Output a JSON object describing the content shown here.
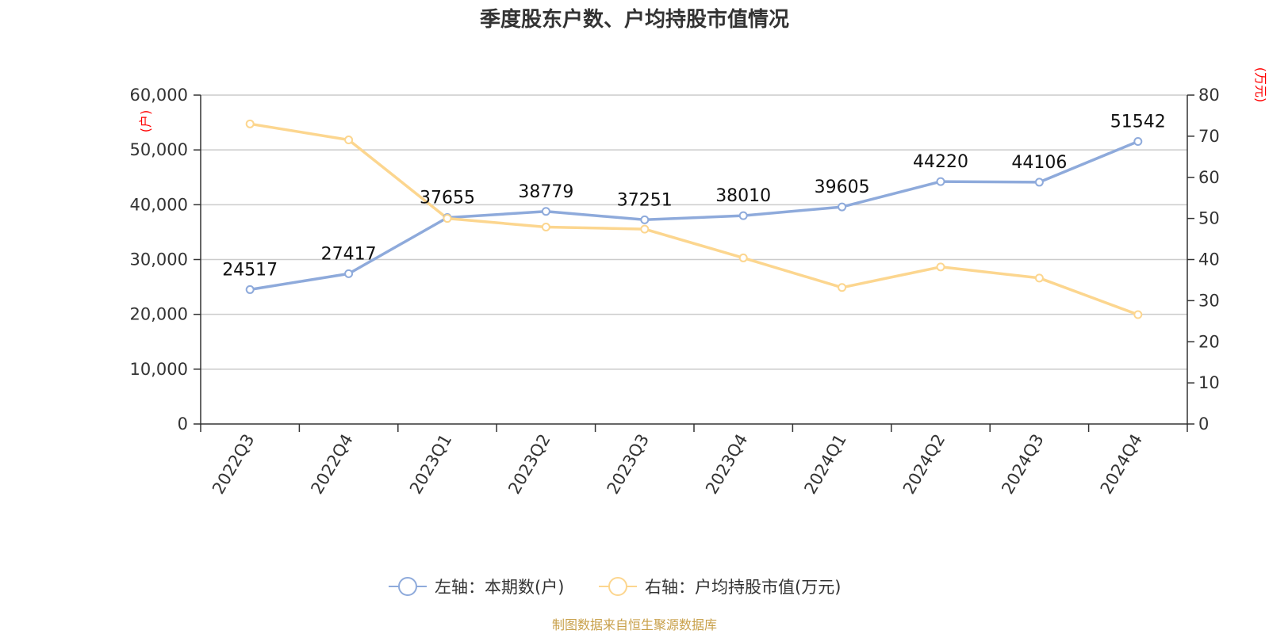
{
  "title": "季度股东户数、户均持股市值情况",
  "source": "制图数据来自恒生聚源数据库",
  "colors": {
    "series_left": "#8eaadb",
    "series_right": "#fcd68f",
    "grid": "#cccccc",
    "axis": "#333333",
    "unit": "#ff0000",
    "source": "#c8a04a"
  },
  "chart_data": {
    "type": "line",
    "title": "季度股东户数、户均持股市值情况",
    "categories": [
      "2022Q3",
      "2022Q4",
      "2023Q1",
      "2023Q2",
      "2023Q3",
      "2023Q4",
      "2024Q1",
      "2024Q2",
      "2024Q3",
      "2024Q4"
    ],
    "y_left": {
      "unit": "(户)",
      "ylim": [
        0,
        60000
      ],
      "ticks": [
        "0",
        "10,000",
        "20,000",
        "30,000",
        "40,000",
        "50,000",
        "60,000"
      ]
    },
    "y_right": {
      "unit": "(万元)",
      "ylim": [
        0,
        80
      ],
      "ticks": [
        "0",
        "10",
        "20",
        "30",
        "40",
        "50",
        "60",
        "70",
        "80"
      ]
    },
    "grid": true,
    "legend_position": "bottom-center",
    "series": [
      {
        "name": "左轴：本期数(户)",
        "axis": "left",
        "color": "#8eaadb",
        "values": [
          24517,
          27417,
          37655,
          38779,
          37251,
          38010,
          39605,
          44220,
          44106,
          51542
        ],
        "labels": [
          "24517",
          "27417",
          "37655",
          "38779",
          "37251",
          "38010",
          "39605",
          "44220",
          "44106",
          "51542"
        ]
      },
      {
        "name": "右轴：户均持股市值(万元)",
        "axis": "right",
        "color": "#fcd68f",
        "values": [
          73.0,
          69.1,
          50.0,
          47.9,
          47.4,
          40.4,
          33.2,
          38.2,
          35.5,
          26.6
        ]
      }
    ]
  }
}
